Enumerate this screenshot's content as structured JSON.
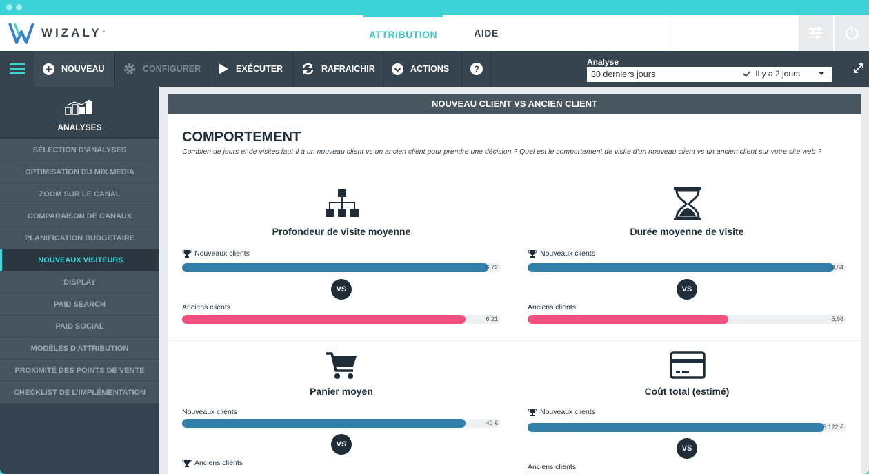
{
  "brand": {
    "name": "WIZALY",
    "mark": "°"
  },
  "nav": {
    "attribution": "ATTRIBUTION",
    "aide": "AIDE"
  },
  "toolbar": {
    "nouveau": "NOUVEAU",
    "configurer": "CONFIGURER",
    "executer": "EXÉCUTER",
    "rafraichir": "RAFRAICHIR",
    "actions": "ACTIONS",
    "analyse_label": "Analyse",
    "analyse_value": "30 derniers jours",
    "analyse_time": "Il y a 2 jours"
  },
  "sidebar": {
    "header": "ANALYSES",
    "items": [
      {
        "label": "SÉLECTION D'ANALYSES"
      },
      {
        "label": "OPTIMISATION DU MIX MEDIA"
      },
      {
        "label": "ZOOM SUR LE CANAL"
      },
      {
        "label": "COMPARAISON DE CANAUX"
      },
      {
        "label": "PLANIFICATION BUDGETAIRE"
      },
      {
        "label": "NOUVEAUX VISITEURS"
      },
      {
        "label": "DISPLAY"
      },
      {
        "label": "PAID SEARCH"
      },
      {
        "label": "PAID SOCIAL"
      },
      {
        "label": "MODÈLES D'ATTRIBUTION"
      },
      {
        "label": "PROXIMITÉ DES POINTS DE VENTE"
      },
      {
        "label": "CHECKLIST DE L'IMPLÉMENTATION"
      }
    ]
  },
  "panel": {
    "header": "NOUVEAU CLIENT VS ANCIEN CLIENT",
    "section_title": "COMPORTEMENT",
    "section_desc": "Combien de jours et de visites faut-il à un nouveau client vs un ancien client pour prendre une décision ? Quel est le comportement de visite d'un nouveau client vs un ancien client sur votre site web ?",
    "vs": "VS",
    "metrics": [
      {
        "title": "Profondeur de visite moyenne",
        "icon": "sitemap-icon",
        "new_label": "Nouveaux clients",
        "new_value": "6,72",
        "new_fraction": 0.96,
        "old_label": "Anciens clients",
        "old_value": "6,21",
        "old_fraction": 0.89
      },
      {
        "title": "Durée moyenne de visite",
        "icon": "hourglass-icon",
        "new_label": "Nouveaux clients",
        "new_value": "8,64",
        "new_fraction": 0.96,
        "old_label": "Anciens clients",
        "old_value": "5,66",
        "old_fraction": 0.63
      },
      {
        "title": "Panier moyen",
        "icon": "cart-icon",
        "new_label": "Nouveaux clients",
        "new_value": "40 €",
        "new_fraction": 0.89,
        "old_label": "Anciens clients"
      },
      {
        "title": "Coût total (estimé)",
        "icon": "credit-card-icon",
        "new_label": "Nouveaux clients",
        "new_value": "5 122 €",
        "new_fraction": 0.93,
        "old_label": "Anciens clients"
      }
    ]
  },
  "colors": {
    "accent": "#3dd3d6",
    "dark": "#35444f",
    "blue_bar": "#2f7fa8",
    "pink_bar": "#f0517f"
  }
}
